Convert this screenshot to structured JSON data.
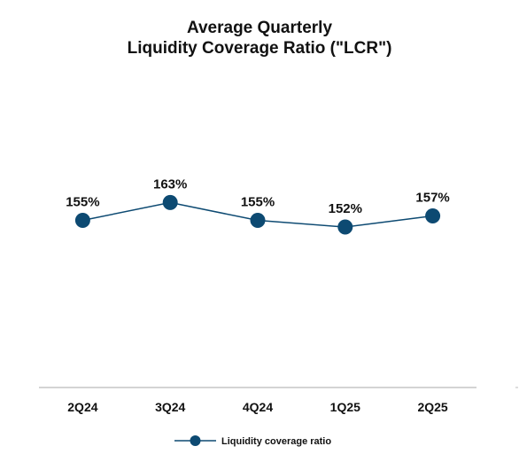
{
  "chart_data": {
    "type": "line",
    "title_lines": [
      "Average Quarterly",
      "Liquidity Coverage Ratio (\"LCR\")"
    ],
    "categories": [
      "2Q24",
      "3Q24",
      "4Q24",
      "1Q25",
      "2Q25"
    ],
    "series": [
      {
        "name": "Liquidity coverage ratio",
        "values": [
          155,
          163,
          155,
          152,
          157
        ],
        "labels": [
          "155%",
          "163%",
          "155%",
          "152%",
          "157%"
        ],
        "color": "#0d4a72"
      }
    ],
    "ylim": [
      80,
      230
    ],
    "grid": false,
    "legend_position": "bottom"
  }
}
